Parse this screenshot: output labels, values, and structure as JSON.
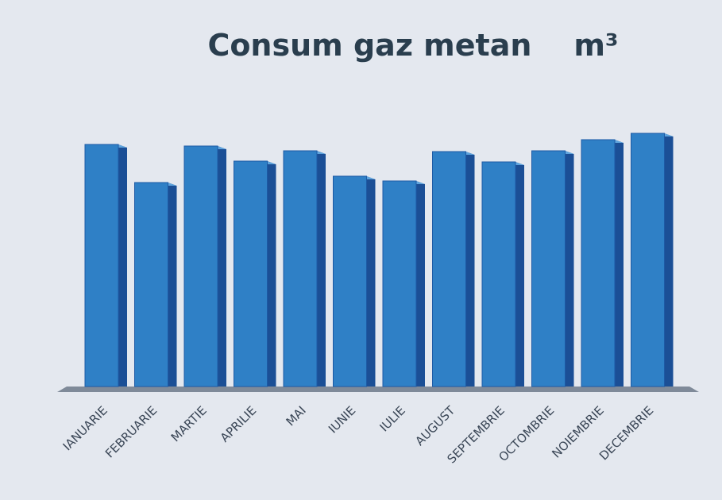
{
  "chart_data": {
    "type": "bar",
    "title": "Consum gaz metan    m³",
    "categories": [
      "IANUARIE",
      "FEBRUARIE",
      "MARTIE",
      "APRILIE",
      "MAI",
      "IUNIE",
      "IULIE",
      "AUGUST",
      "SEPTEMBRIE",
      "OCTOMBRIE",
      "NOIEMBRIE",
      "DECEMBRIE"
    ],
    "values": [
      305,
      257,
      303,
      284,
      297,
      265,
      259,
      296,
      283,
      297,
      311,
      319
    ],
    "color": "#2f80c6",
    "ylim": [
      0,
      330
    ]
  }
}
